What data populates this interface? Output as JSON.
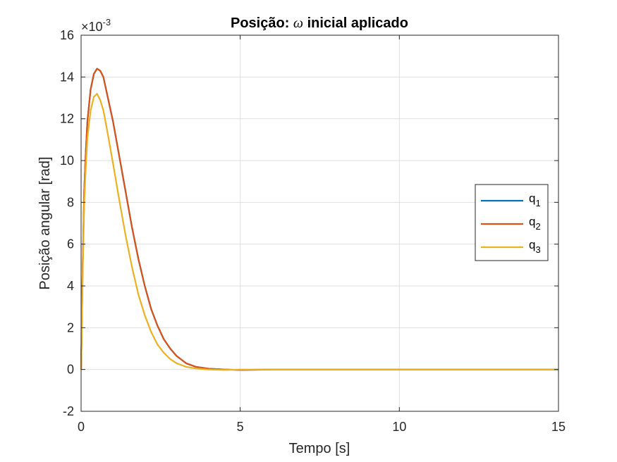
{
  "chart_data": {
    "type": "line",
    "title_prefix": "Posição: ",
    "title_symbol": "ω",
    "title_suffix": " inicial aplicado",
    "xlabel": "Tempo [s]",
    "ylabel": "Posição angular [rad]",
    "y_exponent_base": "×10",
    "y_exponent_power": "-3",
    "xlim": [
      0,
      15
    ],
    "ylim": [
      -2,
      16
    ],
    "xticks": [
      0,
      5,
      10,
      15
    ],
    "yticks": [
      -2,
      0,
      2,
      4,
      6,
      8,
      10,
      12,
      14,
      16
    ],
    "grid": true,
    "legend_position": "right",
    "x": [
      0,
      0.05,
      0.1,
      0.15,
      0.2,
      0.3,
      0.4,
      0.5,
      0.6,
      0.7,
      0.8,
      1.0,
      1.2,
      1.4,
      1.6,
      1.8,
      2.0,
      2.2,
      2.4,
      2.6,
      2.8,
      3.0,
      3.3,
      3.6,
      4.0,
      4.5,
      5.0,
      6.0,
      8.0,
      10.0,
      12.0,
      15.0
    ],
    "series": [
      {
        "name": "q",
        "subscript": "1",
        "color": "#0072BD",
        "values": [
          0,
          5.0,
          8.6,
          10.5,
          11.9,
          13.4,
          14.15,
          14.4,
          14.3,
          14.0,
          13.3,
          11.9,
          10.2,
          8.5,
          6.8,
          5.3,
          4.0,
          2.9,
          2.1,
          1.45,
          1.0,
          0.65,
          0.3,
          0.13,
          0.04,
          0.0,
          -0.02,
          0.0,
          0.0,
          0.0,
          0.0,
          0.0
        ]
      },
      {
        "name": "q",
        "subscript": "2",
        "color": "#D95319",
        "values": [
          0,
          5.0,
          8.6,
          10.5,
          11.9,
          13.4,
          14.15,
          14.4,
          14.3,
          14.0,
          13.3,
          11.9,
          10.2,
          8.5,
          6.8,
          5.3,
          4.0,
          2.9,
          2.1,
          1.45,
          1.0,
          0.65,
          0.3,
          0.13,
          0.04,
          0.0,
          -0.02,
          0.0,
          0.0,
          0.0,
          0.0,
          0.0
        ]
      },
      {
        "name": "q",
        "subscript": "3",
        "color": "#EDB120",
        "values": [
          0,
          4.6,
          8.0,
          9.8,
          11.1,
          12.4,
          13.05,
          13.2,
          12.9,
          12.4,
          11.6,
          9.9,
          8.1,
          6.4,
          4.9,
          3.6,
          2.6,
          1.8,
          1.2,
          0.8,
          0.5,
          0.3,
          0.13,
          0.05,
          0.0,
          -0.02,
          0.0,
          0.0,
          0.0,
          0.0,
          0.0,
          0.0
        ]
      }
    ]
  }
}
